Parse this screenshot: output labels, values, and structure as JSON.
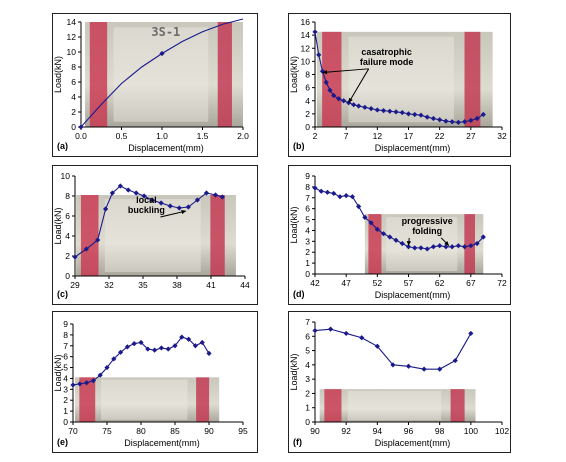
{
  "chart_data": [
    {
      "type": "line",
      "label": "(a)",
      "xlabel": "Displacement(mm)",
      "ylabel": "Load(kN)",
      "xlim": [
        0,
        2
      ],
      "ylim": [
        0,
        14
      ],
      "xticks": [
        "0.0",
        "0.5",
        "1.0",
        "1.5",
        "2.0"
      ],
      "yticks": [
        "0",
        "2",
        "4",
        "6",
        "8",
        "10",
        "12",
        "14"
      ],
      "x": [
        0,
        0.25,
        0.5,
        0.75,
        1.0,
        1.25,
        1.5,
        1.75,
        2.0
      ],
      "y": [
        0,
        3.0,
        5.8,
        8.0,
        9.8,
        11.4,
        12.7,
        13.7,
        14.4
      ],
      "markers_at": [
        0,
        4
      ],
      "annotations": [],
      "photo": {
        "name": "specimen-photo-a",
        "caption": "3S-1",
        "x0": 0.05,
        "x1": 2.0,
        "y0": 0,
        "y1": 14
      }
    },
    {
      "type": "line",
      "label": "(b)",
      "xlabel": "Displacement(mm)",
      "ylabel": "Load(kN)",
      "xlim": [
        2,
        32
      ],
      "ylim": [
        0,
        16
      ],
      "xticks": [
        "2",
        "7",
        "12",
        "17",
        "22",
        "27",
        "32"
      ],
      "yticks": [
        "0",
        "2",
        "4",
        "6",
        "8",
        "10",
        "12",
        "14",
        "16"
      ],
      "x": [
        2,
        2.6,
        3.2,
        3.8,
        4.4,
        5,
        5.8,
        6.6,
        7.4,
        8.2,
        9,
        10,
        11,
        12,
        13,
        14,
        15,
        16,
        17,
        18,
        19,
        20,
        21,
        22,
        23,
        24,
        25,
        26,
        27,
        28,
        29
      ],
      "y": [
        14.5,
        11,
        8.5,
        6.8,
        5.6,
        4.8,
        4.3,
        4.0,
        3.7,
        3.4,
        3.2,
        3.0,
        2.8,
        2.6,
        2.5,
        2.4,
        2.3,
        2.2,
        2.0,
        1.9,
        1.8,
        1.5,
        1.3,
        1.1,
        0.9,
        0.8,
        0.7,
        0.8,
        1.0,
        1.3,
        1.9
      ],
      "annotations": [
        {
          "text": "casatrophic\nfailure mode",
          "x": 13.5,
          "y": 11,
          "arrows": [
            [
              3.2,
              8.3
            ],
            [
              7.4,
              3.7
            ]
          ]
        }
      ],
      "photo": {
        "name": "specimen-photo-b",
        "x0": 2.3,
        "x1": 30.5,
        "y0": 0,
        "y1": 14.5
      }
    },
    {
      "type": "line",
      "label": "(c)",
      "xlabel": "",
      "ylabel": "Load(kN)",
      "xlim": [
        29,
        44
      ],
      "ylim": [
        0,
        10
      ],
      "xticks": [
        "29",
        "32",
        "35",
        "38",
        "41",
        "44"
      ],
      "yticks": [
        "0",
        "2",
        "4",
        "6",
        "8",
        "10"
      ],
      "x": [
        29,
        30,
        31,
        31.7,
        32.3,
        33,
        33.7,
        34.4,
        35.1,
        35.8,
        36.6,
        37.4,
        38.2,
        39,
        39.8,
        40.6,
        41.4,
        42
      ],
      "y": [
        1.9,
        2.7,
        3.6,
        6.7,
        8.3,
        9.0,
        8.6,
        8.3,
        8.0,
        7.6,
        7.3,
        7.0,
        6.8,
        6.9,
        7.6,
        8.3,
        8.1,
        7.9
      ],
      "annotations": [
        {
          "text": "local\nbuckling",
          "x": 35.3,
          "y": 7.3,
          "arrows": [
            [
              38.8,
              6.5
            ]
          ]
        }
      ],
      "photo": {
        "name": "specimen-photo-c",
        "x0": 29.1,
        "x1": 43.2,
        "y0": 0,
        "y1": 8.1
      }
    },
    {
      "type": "line",
      "label": "(d)",
      "xlabel": "Displacement(mm)",
      "ylabel": "Load(kN)",
      "xlim": [
        42,
        72
      ],
      "ylim": [
        0,
        9
      ],
      "xticks": [
        "42",
        "47",
        "52",
        "57",
        "62",
        "67",
        "72"
      ],
      "yticks": [
        "0",
        "1",
        "2",
        "3",
        "4",
        "5",
        "6",
        "7",
        "8",
        "9"
      ],
      "x": [
        42,
        43,
        44,
        45,
        46,
        47,
        48,
        49,
        50,
        51,
        52,
        53,
        54,
        55,
        56,
        57,
        58,
        59,
        60,
        61,
        62,
        63,
        64,
        65,
        66,
        67,
        68,
        69
      ],
      "y": [
        7.9,
        7.6,
        7.5,
        7.4,
        7.1,
        7.2,
        7.1,
        6.2,
        5.2,
        4.7,
        4.1,
        3.7,
        3.4,
        3.1,
        2.8,
        2.5,
        2.4,
        2.4,
        2.3,
        2.5,
        2.6,
        2.5,
        2.5,
        2.6,
        2.5,
        2.6,
        2.8,
        3.4
      ],
      "annotations": [
        {
          "text": "progressive\nfolding",
          "x": 60,
          "y": 4.6,
          "arrows": [
            [
              57,
              2.6
            ],
            [
              63.5,
              2.6
            ]
          ]
        }
      ],
      "photo": {
        "name": "specimen-photo-d",
        "x0": 50,
        "x1": 69,
        "y0": 0,
        "y1": 5.5
      }
    },
    {
      "type": "line",
      "label": "(e)",
      "xlabel": "Displacement(mm)",
      "ylabel": "Load(kN)",
      "xlim": [
        70,
        95
      ],
      "ylim": [
        0,
        9
      ],
      "xticks": [
        "70",
        "75",
        "80",
        "85",
        "90",
        "95"
      ],
      "yticks": [
        "0",
        "1",
        "2",
        "3",
        "4",
        "5",
        "6",
        "7",
        "8",
        "9"
      ],
      "x": [
        70,
        71,
        72,
        73,
        74,
        75,
        76,
        77,
        78,
        79,
        80,
        81,
        82,
        83,
        84,
        85,
        86,
        87,
        88,
        89,
        90
      ],
      "y": [
        3.4,
        3.5,
        3.6,
        3.8,
        4.3,
        5.0,
        5.8,
        6.4,
        6.9,
        7.2,
        7.3,
        6.7,
        6.6,
        6.8,
        6.7,
        7.0,
        7.8,
        7.6,
        7.0,
        7.3,
        6.3
      ],
      "annotations": [],
      "photo": {
        "name": "specimen-photo-e",
        "x0": 70.3,
        "x1": 91.5,
        "y0": 0,
        "y1": 4.1
      }
    },
    {
      "type": "line",
      "label": "(f)",
      "xlabel": "Displacement(mm)",
      "ylabel": "Load(kN)",
      "xlim": [
        90,
        102
      ],
      "ylim": [
        0,
        7
      ],
      "xticks": [
        "90",
        "92",
        "94",
        "96",
        "98",
        "100",
        "102"
      ],
      "yticks": [
        "0",
        "1",
        "2",
        "3",
        "4",
        "5",
        "6",
        "7"
      ],
      "x": [
        90,
        91,
        92,
        93,
        94,
        95,
        96,
        97,
        98,
        99,
        100
      ],
      "y": [
        6.4,
        6.5,
        6.2,
        5.9,
        5.3,
        4.0,
        3.9,
        3.7,
        3.7,
        4.3,
        6.2
      ],
      "annotations": [],
      "photo": {
        "name": "specimen-photo-f",
        "x0": 90.3,
        "x1": 100.3,
        "y0": 0,
        "y1": 2.3
      }
    }
  ]
}
